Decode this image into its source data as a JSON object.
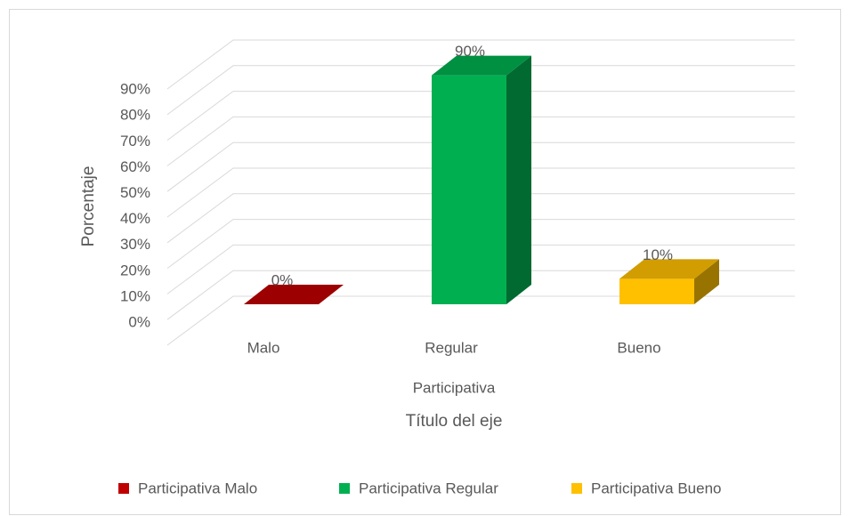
{
  "chart_data": {
    "type": "bar3d",
    "categories": [
      "Malo",
      "Regular",
      "Bueno"
    ],
    "category_group": "Participativa",
    "x_axis_title": "Título del eje",
    "y_axis_title": "Porcentaje",
    "series": [
      {
        "name": "Participativa Malo",
        "color": "#c00000",
        "values": [
          0,
          null,
          null
        ],
        "value_labels": [
          "0%",
          null,
          null
        ]
      },
      {
        "name": "Participativa Regular",
        "color": "#00b050",
        "values": [
          null,
          90,
          null
        ],
        "value_labels": [
          null,
          "90%",
          null
        ]
      },
      {
        "name": "Participativa Bueno",
        "color": "#ffc000",
        "values": [
          null,
          null,
          10
        ],
        "value_labels": [
          null,
          null,
          "10%"
        ]
      }
    ],
    "ylim": [
      0,
      100
    ],
    "yticks": [
      {
        "value": 0,
        "label": "0%"
      },
      {
        "value": 10,
        "label": "10%"
      },
      {
        "value": 20,
        "label": "20%"
      },
      {
        "value": 30,
        "label": "30%"
      },
      {
        "value": 40,
        "label": "40%"
      },
      {
        "value": 50,
        "label": "50%"
      },
      {
        "value": 60,
        "label": "60%"
      },
      {
        "value": 70,
        "label": "70%"
      },
      {
        "value": 80,
        "label": "80%"
      },
      {
        "value": 90,
        "label": "90%"
      }
    ],
    "grid": true,
    "legend": "bottom"
  }
}
